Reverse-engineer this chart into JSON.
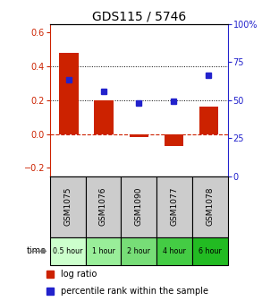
{
  "title": "GDS115 / 5746",
  "samples": [
    "GSM1075",
    "GSM1076",
    "GSM1090",
    "GSM1077",
    "GSM1078"
  ],
  "time_labels": [
    "0.5 hour",
    "1 hour",
    "2 hour",
    "4 hour",
    "6 hour"
  ],
  "time_colors": [
    "#ccffcc",
    "#99ee99",
    "#77dd77",
    "#44cc44",
    "#22bb22"
  ],
  "log_ratio": [
    0.48,
    0.2,
    -0.02,
    -0.07,
    0.16
  ],
  "percentile": [
    0.32,
    0.25,
    0.185,
    0.195,
    0.345
  ],
  "bar_color": "#cc2200",
  "dot_color": "#2222cc",
  "left_ylim": [
    -0.25,
    0.65
  ],
  "right_ylim": [
    0,
    100
  ],
  "left_yticks": [
    -0.2,
    0.0,
    0.2,
    0.4,
    0.6
  ],
  "right_yticks": [
    0,
    25,
    50,
    75,
    100
  ],
  "hline_y": [
    0.2,
    0.4
  ],
  "zero_line_y": 0.0,
  "bg_color": "#ffffff",
  "sample_box_color": "#cccccc"
}
